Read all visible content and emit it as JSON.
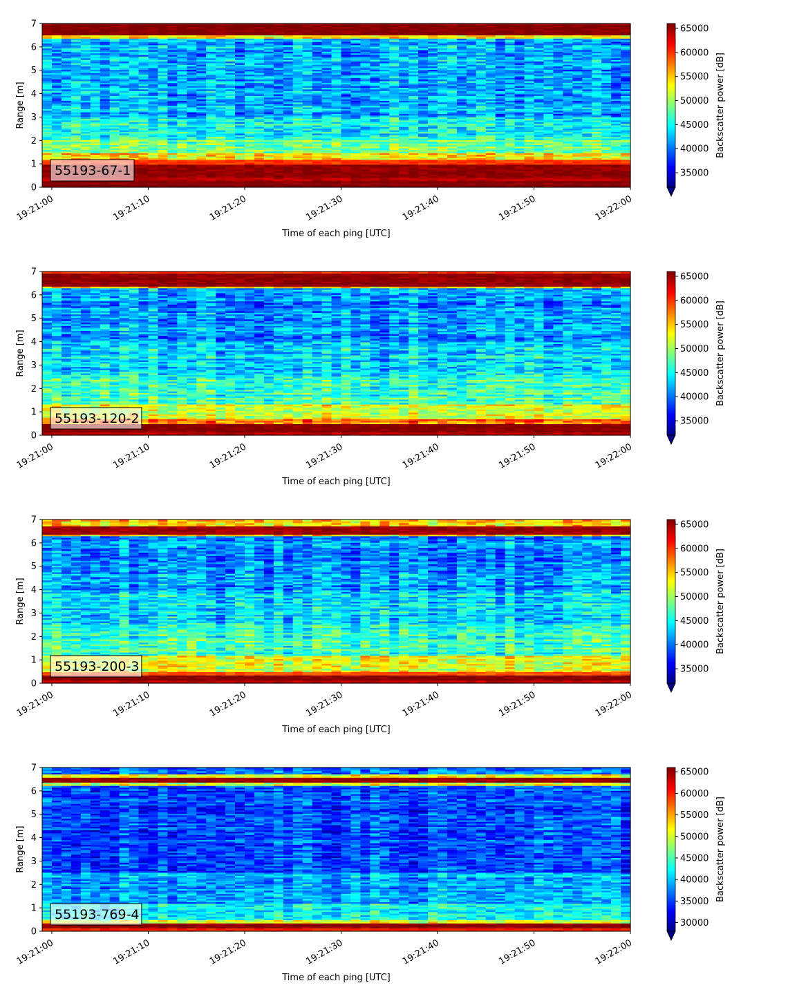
{
  "chart_data": [
    {
      "type": "heatmap",
      "label": "55193-67-1",
      "xlabel": "Time of each ping [UTC]",
      "ylabel": "Range [m]",
      "x_ticks": [
        "19:21:00",
        "19:21:10",
        "19:21:20",
        "19:21:30",
        "19:21:40",
        "19:21:50",
        "19:22:00"
      ],
      "x_range": [
        "19:20:59",
        "19:22:00"
      ],
      "ylim": [
        0,
        7
      ],
      "y_ticks": [
        0,
        1,
        2,
        3,
        4,
        5,
        6,
        7
      ],
      "colorbar": {
        "label": "Backscatter power [dB]",
        "ticks": [
          35000,
          40000,
          45000,
          50000,
          55000,
          60000,
          65000
        ],
        "range": [
          32000,
          66000
        ],
        "extend": "min",
        "colormap": "jet"
      },
      "profile": [
        {
          "range": [
            0.0,
            0.25
          ],
          "level": 66000
        },
        {
          "range": [
            0.25,
            0.45
          ],
          "level": 64000
        },
        {
          "range": [
            0.45,
            1.0
          ],
          "level": 65500
        },
        {
          "range": [
            1.0,
            1.2
          ],
          "level": 60000
        },
        {
          "range": [
            1.2,
            1.5
          ],
          "level": 54000
        },
        {
          "range": [
            1.5,
            2.0
          ],
          "level": 49000
        },
        {
          "range": [
            2.0,
            3.0
          ],
          "level": 45000
        },
        {
          "range": [
            3.0,
            6.4
          ],
          "level": 42000
        },
        {
          "range": [
            6.4,
            6.5
          ],
          "level": 52000
        },
        {
          "range": [
            6.5,
            7.0
          ],
          "level": 66000
        }
      ]
    },
    {
      "type": "heatmap",
      "label": "55193-120-2",
      "xlabel": "Time of each ping [UTC]",
      "ylabel": "Range [m]",
      "x_ticks": [
        "19:21:00",
        "19:21:10",
        "19:21:20",
        "19:21:30",
        "19:21:40",
        "19:21:50",
        "19:22:00"
      ],
      "x_range": [
        "19:20:59",
        "19:22:00"
      ],
      "ylim": [
        0,
        7
      ],
      "y_ticks": [
        0,
        1,
        2,
        3,
        4,
        5,
        6,
        7
      ],
      "colorbar": {
        "label": "Backscatter power [dB]",
        "ticks": [
          35000,
          40000,
          45000,
          50000,
          55000,
          60000,
          65000
        ],
        "range": [
          32000,
          66000
        ],
        "extend": "min",
        "colormap": "jet"
      },
      "profile": [
        {
          "range": [
            0.0,
            0.15
          ],
          "level": 64000
        },
        {
          "range": [
            0.15,
            0.5
          ],
          "level": 66000
        },
        {
          "range": [
            0.5,
            0.7
          ],
          "level": 58000
        },
        {
          "range": [
            0.7,
            1.3
          ],
          "level": 52000
        },
        {
          "range": [
            1.3,
            2.5
          ],
          "level": 47000
        },
        {
          "range": [
            2.5,
            4.0
          ],
          "level": 44000
        },
        {
          "range": [
            4.0,
            6.3
          ],
          "level": 41500
        },
        {
          "range": [
            6.3,
            6.4
          ],
          "level": 55000
        },
        {
          "range": [
            6.4,
            6.9
          ],
          "level": 65500
        },
        {
          "range": [
            6.9,
            7.0
          ],
          "level": 60000
        }
      ]
    },
    {
      "type": "heatmap",
      "label": "55193-200-3",
      "xlabel": "Time of each ping [UTC]",
      "ylabel": "Range [m]",
      "x_ticks": [
        "19:21:00",
        "19:21:10",
        "19:21:20",
        "19:21:30",
        "19:21:40",
        "19:21:50",
        "19:22:00"
      ],
      "x_range": [
        "19:20:59",
        "19:22:00"
      ],
      "ylim": [
        0,
        7
      ],
      "y_ticks": [
        0,
        1,
        2,
        3,
        4,
        5,
        6,
        7
      ],
      "colorbar": {
        "label": "Backscatter power [dB]",
        "ticks": [
          35000,
          40000,
          45000,
          50000,
          55000,
          60000,
          65000
        ],
        "range": [
          32000,
          66000
        ],
        "extend": "min",
        "colormap": "jet"
      },
      "profile": [
        {
          "range": [
            0.0,
            0.15
          ],
          "level": 64000
        },
        {
          "range": [
            0.15,
            0.35
          ],
          "level": 66000
        },
        {
          "range": [
            0.35,
            0.5
          ],
          "level": 59000
        },
        {
          "range": [
            0.5,
            1.2
          ],
          "level": 52000
        },
        {
          "range": [
            1.2,
            2.5
          ],
          "level": 46500
        },
        {
          "range": [
            2.5,
            4.0
          ],
          "level": 43500
        },
        {
          "range": [
            4.0,
            6.3
          ],
          "level": 41000
        },
        {
          "range": [
            6.3,
            6.4
          ],
          "level": 55000
        },
        {
          "range": [
            6.4,
            6.7
          ],
          "level": 65000
        },
        {
          "range": [
            6.7,
            7.0
          ],
          "level": 55000
        }
      ]
    },
    {
      "type": "heatmap",
      "label": "55193-769-4",
      "xlabel": "Time of each ping [UTC]",
      "ylabel": "Range [m]",
      "x_ticks": [
        "19:21:00",
        "19:21:10",
        "19:21:20",
        "19:21:30",
        "19:21:40",
        "19:21:50",
        "19:22:00"
      ],
      "x_range": [
        "19:20:59",
        "19:22:00"
      ],
      "ylim": [
        0,
        7
      ],
      "y_ticks": [
        0,
        1,
        2,
        3,
        4,
        5,
        6,
        7
      ],
      "colorbar": {
        "label": "Backscatter power [dB]",
        "ticks": [
          30000,
          35000,
          40000,
          45000,
          50000,
          55000,
          60000,
          65000
        ],
        "range": [
          28000,
          66000
        ],
        "extend": "min",
        "colormap": "jet"
      },
      "profile": [
        {
          "range": [
            0.0,
            0.15
          ],
          "level": 60000
        },
        {
          "range": [
            0.15,
            0.35
          ],
          "level": 65500
        },
        {
          "range": [
            0.35,
            0.5
          ],
          "level": 50000
        },
        {
          "range": [
            0.5,
            1.2
          ],
          "level": 43000
        },
        {
          "range": [
            1.2,
            2.5
          ],
          "level": 39000
        },
        {
          "range": [
            2.5,
            6.2
          ],
          "level": 35500
        },
        {
          "range": [
            6.2,
            6.35
          ],
          "level": 50000
        },
        {
          "range": [
            6.35,
            6.55
          ],
          "level": 65000
        },
        {
          "range": [
            6.55,
            6.7
          ],
          "level": 52000
        },
        {
          "range": [
            6.7,
            7.0
          ],
          "level": 37000
        }
      ]
    }
  ]
}
